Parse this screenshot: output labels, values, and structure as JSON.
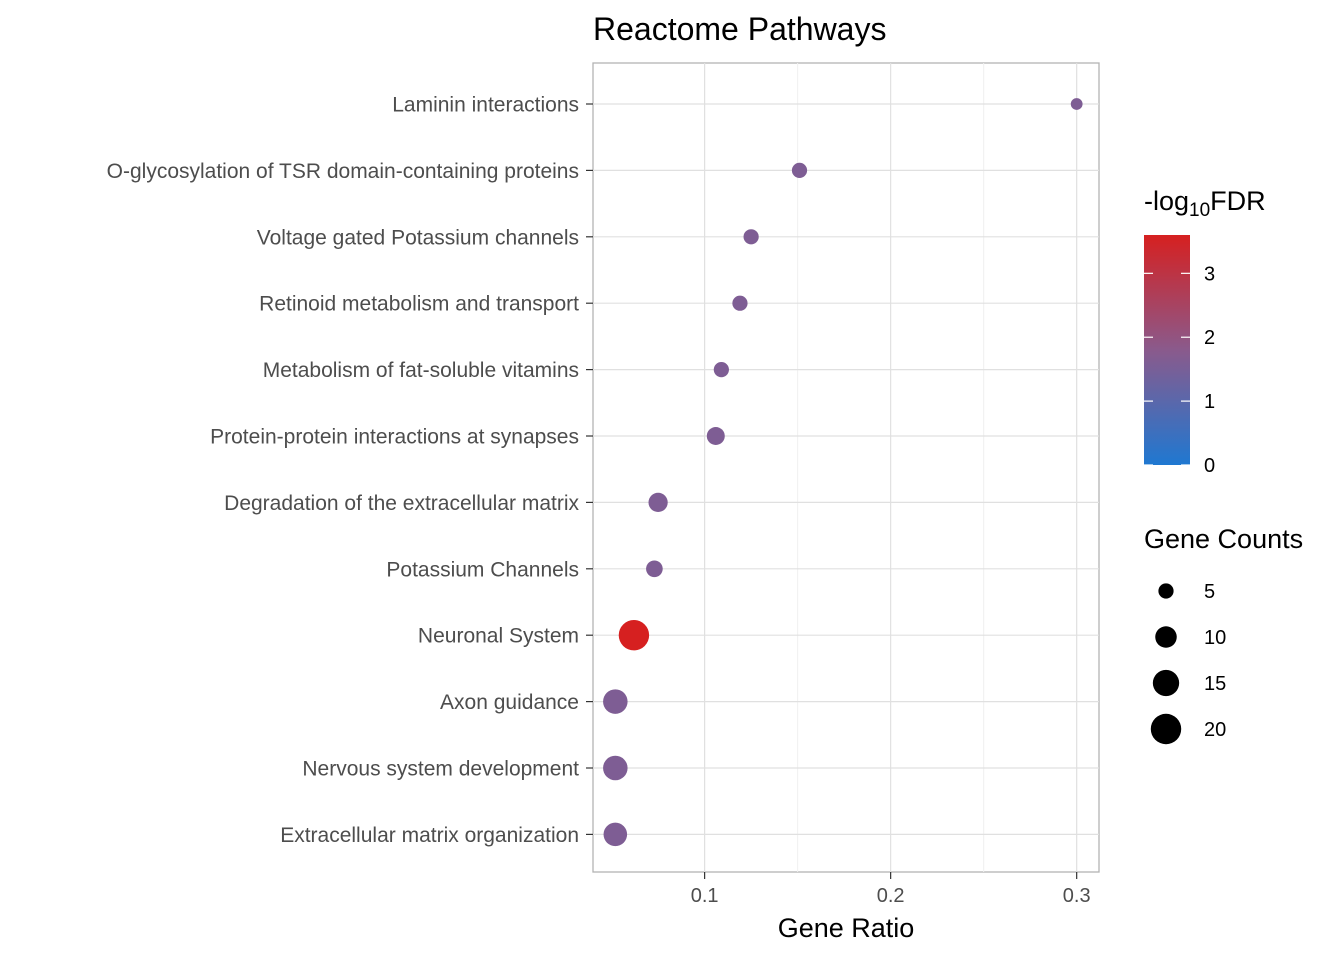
{
  "chart_data": {
    "type": "scatter",
    "title": "Reactome Pathways",
    "xlabel": "Gene Ratio",
    "ylabel": "",
    "xlim": [
      0.04,
      0.312
    ],
    "xticks": [
      0.1,
      0.2,
      0.3
    ],
    "xtick_labels": [
      "0.1",
      "0.2",
      "0.3"
    ],
    "grid": true,
    "categories": [
      "Laminin interactions",
      "O-glycosylation of TSR domain-containing proteins",
      "Voltage gated Potassium channels",
      "Retinoid metabolism and transport",
      "Metabolism of fat-soluble vitamins",
      "Protein-protein interactions at synapses",
      "Degradation of the extracellular matrix",
      "Potassium Channels",
      "Neuronal System",
      "Axon guidance",
      "Nervous system development",
      "Extracellular matrix organization"
    ],
    "points": [
      {
        "category": "Laminin interactions",
        "gene_ratio": 0.3,
        "gene_count": 3,
        "neg_log10_fdr": 1.6
      },
      {
        "category": "O-glycosylation of TSR domain-containing proteins",
        "gene_ratio": 0.151,
        "gene_count": 5,
        "neg_log10_fdr": 1.6
      },
      {
        "category": "Voltage gated Potassium channels",
        "gene_ratio": 0.125,
        "gene_count": 5,
        "neg_log10_fdr": 1.6
      },
      {
        "category": "Retinoid metabolism and transport",
        "gene_ratio": 0.119,
        "gene_count": 5,
        "neg_log10_fdr": 1.6
      },
      {
        "category": "Metabolism of fat-soluble vitamins",
        "gene_ratio": 0.109,
        "gene_count": 5,
        "neg_log10_fdr": 1.6
      },
      {
        "category": "Protein-protein interactions at synapses",
        "gene_ratio": 0.106,
        "gene_count": 7,
        "neg_log10_fdr": 1.6
      },
      {
        "category": "Degradation of the extracellular matrix",
        "gene_ratio": 0.075,
        "gene_count": 8,
        "neg_log10_fdr": 1.6
      },
      {
        "category": "Potassium Channels",
        "gene_ratio": 0.073,
        "gene_count": 6,
        "neg_log10_fdr": 1.6
      },
      {
        "category": "Neuronal System",
        "gene_ratio": 0.062,
        "gene_count": 20,
        "neg_log10_fdr": 3.6
      },
      {
        "category": "Axon guidance",
        "gene_ratio": 0.052,
        "gene_count": 13,
        "neg_log10_fdr": 1.6
      },
      {
        "category": "Nervous system development",
        "gene_ratio": 0.052,
        "gene_count": 13,
        "neg_log10_fdr": 1.6
      },
      {
        "category": "Extracellular matrix organization",
        "gene_ratio": 0.052,
        "gene_count": 12,
        "neg_log10_fdr": 1.6
      }
    ],
    "color_legend": {
      "title_prefix": "-log",
      "title_subscript": "10",
      "title_suffix": "FDR",
      "min": 0,
      "max": 3.6,
      "ticks": [
        "0",
        "1",
        "2",
        "3"
      ],
      "color_low": "#1f78d1",
      "color_mid": "#8a5a8c",
      "color_high": "#d62020"
    },
    "size_legend": {
      "title": "Gene Counts",
      "values": [
        "5",
        "10",
        "15",
        "20"
      ]
    },
    "legend_position": "right"
  }
}
